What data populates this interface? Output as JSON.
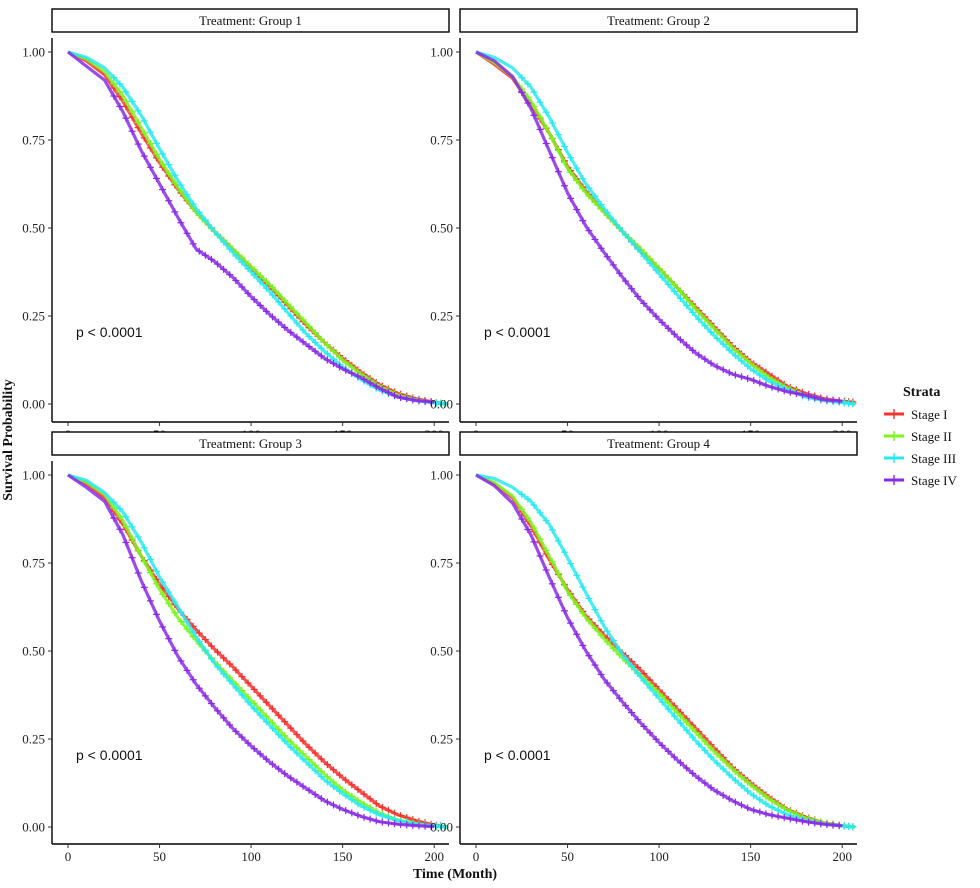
{
  "chart_data": {
    "type": "line",
    "subtype": "kaplan-meier-facets",
    "ylabel": "Survival Probability",
    "xlabel": "Time (Month)",
    "xlim": [
      0,
      207
    ],
    "ylim": [
      0,
      1
    ],
    "x_ticks": [
      0,
      50,
      100,
      150,
      200
    ],
    "y_ticks": [
      "0.00",
      "0.25",
      "0.50",
      "0.75",
      "1.00"
    ],
    "legend": {
      "title": "Strata",
      "position": "right",
      "entries": [
        {
          "label": "Stage I",
          "color": "#F8312F"
        },
        {
          "label": "Stage II",
          "color": "#7CF51A"
        },
        {
          "label": "Stage III",
          "color": "#27EAF0"
        },
        {
          "label": "Stage IV",
          "color": "#8B2BE8"
        }
      ]
    },
    "panels": [
      {
        "title": "Treatment: Group 1",
        "pvalue": "p < 0.0001",
        "series": [
          {
            "name": "Stage I",
            "color": "#F8312F",
            "x": [
              0,
              10,
              20,
              30,
              40,
              50,
              60,
              70,
              80,
              90,
              100,
              110,
              120,
              130,
              140,
              150,
              160,
              170,
              180,
              190,
              200,
              207
            ],
            "y": [
              1.0,
              0.975,
              0.935,
              0.86,
              0.77,
              0.685,
              0.61,
              0.545,
              0.49,
              0.44,
              0.385,
              0.335,
              0.28,
              0.225,
              0.175,
              0.13,
              0.09,
              0.055,
              0.03,
              0.015,
              0.005,
              0.0
            ]
          },
          {
            "name": "Stage II",
            "color": "#7CF51A",
            "x": [
              0,
              10,
              20,
              30,
              40,
              50,
              60,
              70,
              80,
              90,
              100,
              110,
              120,
              130,
              140,
              150,
              160,
              170,
              180,
              190,
              200,
              207
            ],
            "y": [
              1.0,
              0.98,
              0.945,
              0.875,
              0.785,
              0.695,
              0.615,
              0.545,
              0.49,
              0.44,
              0.39,
              0.34,
              0.285,
              0.23,
              0.175,
              0.125,
              0.085,
              0.05,
              0.025,
              0.012,
              0.004,
              0.0
            ]
          },
          {
            "name": "Stage III",
            "color": "#27EAF0",
            "x": [
              0,
              10,
              20,
              30,
              40,
              50,
              60,
              70,
              80,
              90,
              100,
              110,
              120,
              130,
              140,
              150,
              160,
              170,
              180,
              190,
              200,
              207
            ],
            "y": [
              1.0,
              0.985,
              0.955,
              0.9,
              0.82,
              0.725,
              0.635,
              0.555,
              0.49,
              0.43,
              0.375,
              0.32,
              0.26,
              0.2,
              0.15,
              0.105,
              0.07,
              0.04,
              0.02,
              0.01,
              0.003,
              0.0
            ]
          },
          {
            "name": "Stage IV",
            "color": "#8B2BE8",
            "x": [
              0,
              10,
              20,
              30,
              40,
              50,
              60,
              70,
              80,
              90,
              100,
              110,
              120,
              130,
              140,
              150,
              160,
              170,
              180,
              190,
              200
            ],
            "y": [
              1.0,
              0.96,
              0.92,
              0.83,
              0.72,
              0.625,
              0.53,
              0.44,
              0.405,
              0.36,
              0.305,
              0.255,
              0.21,
              0.17,
              0.13,
              0.1,
              0.075,
              0.045,
              0.02,
              0.01,
              0.005
            ]
          }
        ]
      },
      {
        "title": "Treatment: Group 2",
        "pvalue": "p < 0.0001",
        "series": [
          {
            "name": "Stage I",
            "color": "#F8312F",
            "x": [
              0,
              10,
              20,
              30,
              40,
              50,
              60,
              70,
              80,
              90,
              100,
              110,
              120,
              130,
              140,
              150,
              160,
              170,
              180,
              190,
              200,
              207
            ],
            "y": [
              1.0,
              0.965,
              0.925,
              0.85,
              0.77,
              0.675,
              0.605,
              0.545,
              0.49,
              0.435,
              0.385,
              0.33,
              0.275,
              0.22,
              0.165,
              0.12,
              0.085,
              0.05,
              0.03,
              0.015,
              0.008,
              0.005
            ]
          },
          {
            "name": "Stage II",
            "color": "#7CF51A",
            "x": [
              0,
              10,
              20,
              30,
              40,
              50,
              60,
              70,
              80,
              90,
              100,
              110,
              120,
              130,
              140,
              150,
              160,
              170,
              180,
              190,
              200,
              207
            ],
            "y": [
              1.0,
              0.97,
              0.93,
              0.86,
              0.77,
              0.67,
              0.6,
              0.545,
              0.49,
              0.44,
              0.385,
              0.33,
              0.27,
              0.215,
              0.16,
              0.115,
              0.075,
              0.045,
              0.025,
              0.012,
              0.005,
              0.0
            ]
          },
          {
            "name": "Stage III",
            "color": "#27EAF0",
            "x": [
              0,
              10,
              20,
              30,
              40,
              50,
              60,
              70,
              80,
              90,
              100,
              110,
              120,
              130,
              140,
              150,
              160,
              170,
              180,
              190,
              200,
              207
            ],
            "y": [
              1.0,
              0.985,
              0.955,
              0.9,
              0.815,
              0.715,
              0.625,
              0.555,
              0.49,
              0.43,
              0.37,
              0.31,
              0.25,
              0.195,
              0.145,
              0.1,
              0.065,
              0.04,
              0.02,
              0.01,
              0.004,
              0.0
            ]
          },
          {
            "name": "Stage IV",
            "color": "#8B2BE8",
            "x": [
              0,
              10,
              20,
              30,
              40,
              50,
              60,
              70,
              80,
              90,
              100,
              110,
              120,
              130,
              140,
              150,
              160,
              170,
              180,
              190,
              200
            ],
            "y": [
              1.0,
              0.975,
              0.93,
              0.84,
              0.72,
              0.6,
              0.505,
              0.43,
              0.36,
              0.295,
              0.24,
              0.19,
              0.145,
              0.11,
              0.085,
              0.07,
              0.05,
              0.035,
              0.025,
              0.012,
              0.008
            ]
          }
        ]
      },
      {
        "title": "Treatment: Group 3",
        "pvalue": "p < 0.0001",
        "series": [
          {
            "name": "Stage I",
            "color": "#F8312F",
            "x": [
              0,
              10,
              20,
              30,
              40,
              50,
              60,
              70,
              80,
              90,
              100,
              110,
              120,
              130,
              140,
              150,
              160,
              170,
              180,
              190,
              200,
              207
            ],
            "y": [
              1.0,
              0.975,
              0.935,
              0.86,
              0.77,
              0.69,
              0.62,
              0.56,
              0.505,
              0.455,
              0.4,
              0.345,
              0.29,
              0.235,
              0.185,
              0.14,
              0.1,
              0.06,
              0.035,
              0.018,
              0.006,
              0.0
            ]
          },
          {
            "name": "Stage II",
            "color": "#7CF51A",
            "x": [
              0,
              10,
              20,
              30,
              40,
              50,
              60,
              70,
              80,
              90,
              100,
              110,
              120,
              130,
              140,
              150,
              160,
              170,
              180,
              190,
              200,
              207
            ],
            "y": [
              1.0,
              0.98,
              0.945,
              0.87,
              0.77,
              0.675,
              0.595,
              0.53,
              0.47,
              0.415,
              0.36,
              0.305,
              0.25,
              0.2,
              0.15,
              0.105,
              0.07,
              0.04,
              0.02,
              0.01,
              0.003,
              0.0
            ]
          },
          {
            "name": "Stage III",
            "color": "#27EAF0",
            "x": [
              0,
              10,
              20,
              30,
              40,
              50,
              60,
              70,
              80,
              90,
              100,
              110,
              120,
              130,
              140,
              150,
              160,
              170,
              180,
              190,
              200,
              207
            ],
            "y": [
              1.0,
              0.985,
              0.95,
              0.895,
              0.81,
              0.71,
              0.625,
              0.54,
              0.465,
              0.405,
              0.345,
              0.29,
              0.235,
              0.185,
              0.135,
              0.095,
              0.06,
              0.035,
              0.018,
              0.008,
              0.003,
              0.0
            ]
          },
          {
            "name": "Stage IV",
            "color": "#8B2BE8",
            "x": [
              0,
              10,
              20,
              30,
              40,
              50,
              60,
              70,
              80,
              90,
              100,
              110,
              120,
              130,
              140,
              150,
              160,
              170,
              180,
              190,
              200
            ],
            "y": [
              1.0,
              0.965,
              0.925,
              0.83,
              0.7,
              0.585,
              0.485,
              0.405,
              0.34,
              0.28,
              0.23,
              0.185,
              0.145,
              0.11,
              0.075,
              0.05,
              0.03,
              0.015,
              0.008,
              0.004,
              0.001
            ]
          }
        ]
      },
      {
        "title": "Treatment: Group 4",
        "pvalue": "p < 0.0001",
        "series": [
          {
            "name": "Stage I",
            "color": "#F8312F",
            "x": [
              0,
              10,
              20,
              30,
              40,
              50,
              60,
              70,
              80,
              90,
              100,
              110,
              120,
              130,
              140,
              150,
              160,
              170,
              180,
              190,
              200,
              207
            ],
            "y": [
              1.0,
              0.975,
              0.935,
              0.855,
              0.76,
              0.675,
              0.6,
              0.545,
              0.495,
              0.445,
              0.39,
              0.335,
              0.28,
              0.225,
              0.17,
              0.125,
              0.085,
              0.05,
              0.028,
              0.012,
              0.004,
              0.0
            ]
          },
          {
            "name": "Stage II",
            "color": "#7CF51A",
            "x": [
              0,
              10,
              20,
              30,
              40,
              50,
              60,
              70,
              80,
              90,
              100,
              110,
              120,
              130,
              140,
              150,
              160,
              170,
              180,
              190,
              200,
              207
            ],
            "y": [
              1.0,
              0.978,
              0.94,
              0.865,
              0.77,
              0.67,
              0.595,
              0.535,
              0.48,
              0.43,
              0.38,
              0.325,
              0.27,
              0.215,
              0.165,
              0.12,
              0.08,
              0.048,
              0.025,
              0.012,
              0.004,
              0.0
            ]
          },
          {
            "name": "Stage III",
            "color": "#27EAF0",
            "x": [
              0,
              10,
              20,
              30,
              40,
              50,
              60,
              70,
              80,
              90,
              100,
              110,
              120,
              130,
              140,
              150,
              160,
              170,
              180,
              190,
              200,
              207
            ],
            "y": [
              1.0,
              0.99,
              0.965,
              0.925,
              0.86,
              0.765,
              0.665,
              0.57,
              0.49,
              0.425,
              0.365,
              0.305,
              0.245,
              0.19,
              0.14,
              0.095,
              0.06,
              0.035,
              0.018,
              0.008,
              0.003,
              0.0
            ]
          },
          {
            "name": "Stage IV",
            "color": "#8B2BE8",
            "x": [
              0,
              10,
              20,
              30,
              40,
              50,
              60,
              70,
              80,
              90,
              100,
              110,
              120,
              130,
              140,
              150,
              160,
              170,
              180,
              190,
              200
            ],
            "y": [
              1.0,
              0.97,
              0.92,
              0.83,
              0.71,
              0.595,
              0.5,
              0.42,
              0.355,
              0.295,
              0.24,
              0.19,
              0.145,
              0.105,
              0.075,
              0.05,
              0.035,
              0.025,
              0.015,
              0.008,
              0.003
            ]
          }
        ]
      }
    ]
  }
}
